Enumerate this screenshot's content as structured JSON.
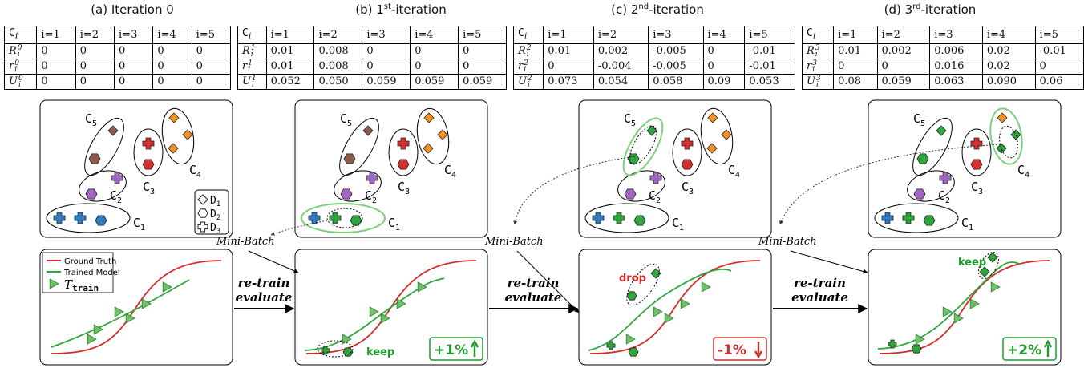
{
  "panels": [
    {
      "title": "(a)  Iteration 0",
      "head": [
        "C",
        "i=1",
        "i=2",
        "i=3",
        "i=4",
        "i=5"
      ],
      "rows": [
        {
          "label": "R",
          "sup": "0",
          "vals": [
            "0",
            "0",
            "0",
            "0",
            "0"
          ]
        },
        {
          "label": "r",
          "sup": "0",
          "vals": [
            "0",
            "0",
            "0",
            "0",
            "0"
          ]
        },
        {
          "label": "U",
          "sup": "0",
          "vals": [
            "0",
            "0",
            "0",
            "0",
            "0"
          ]
        }
      ],
      "metric": ""
    },
    {
      "title": "(b) 1st-iteration",
      "head": [
        "C",
        "i=1",
        "i=2",
        "i=3",
        "i=4",
        "i=5"
      ],
      "rows": [
        {
          "label": "R",
          "sup": "1",
          "vals": [
            "0.01",
            "0.008",
            "0",
            "0",
            "0"
          ]
        },
        {
          "label": "r",
          "sup": "1",
          "vals": [
            "0.01",
            "0.008",
            "0",
            "0",
            "0"
          ]
        },
        {
          "label": "U",
          "sup": "1",
          "vals": [
            "0.052",
            "0.050",
            "0.059",
            "0.059",
            "0.059"
          ]
        }
      ],
      "metric": "+1%"
    },
    {
      "title": "(c)  2nd-iteration",
      "head": [
        "C",
        "i=1",
        "i=2",
        "i=3",
        "i=4",
        "i=5"
      ],
      "rows": [
        {
          "label": "R",
          "sup": "2",
          "vals": [
            "0.01",
            "0.002",
            "-0.005",
            "0",
            "-0.01"
          ]
        },
        {
          "label": "r",
          "sup": "2",
          "vals": [
            "0",
            "-0.004",
            "-0.005",
            "0",
            "-0.01"
          ]
        },
        {
          "label": "U",
          "sup": "2",
          "vals": [
            "0.073",
            "0.054",
            "0.058",
            "0.09",
            "0.053"
          ]
        }
      ],
      "metric": "-1%"
    },
    {
      "title": "(d)  3rd-iteration",
      "head": [
        "C",
        "i=1",
        "i=2",
        "i=3",
        "i=4",
        "i=5"
      ],
      "rows": [
        {
          "label": "R",
          "sup": "3",
          "vals": [
            "0.01",
            "0.002",
            "0.006",
            "0.02",
            "-0.01"
          ]
        },
        {
          "label": "r",
          "sup": "3",
          "vals": [
            "0",
            "0",
            "0.016",
            "0.02",
            "0"
          ]
        },
        {
          "label": "U",
          "sup": "3",
          "vals": [
            "0.08",
            "0.059",
            "0.063",
            "0.090",
            "0.06"
          ]
        }
      ],
      "metric": "+2%"
    }
  ],
  "cluster_labels": [
    "C5",
    "C4",
    "C3",
    "C2",
    "C1"
  ],
  "legend_datasets": [
    "D1",
    "D2",
    "D3"
  ],
  "plot_legend": {
    "ground_truth": "Ground Truth",
    "trained_model": "Trained Model",
    "train": "T_train"
  },
  "minibatch_label": "Mini-Batch",
  "retrain_label": "re-train",
  "evaluate_label": "evaluate",
  "keep_label": "keep",
  "drop_label": "drop",
  "colors": {
    "brown": "#8d5a4b",
    "purple": "#a166c4",
    "blue": "#2e7bc0",
    "red": "#d63131",
    "orange": "#f5921e",
    "green": "#2da63b",
    "highlight": "#7ed07f",
    "truth": "#d62a2a",
    "model": "#2da63b",
    "up": "#1f9a2d",
    "down": "#d42b2b"
  }
}
